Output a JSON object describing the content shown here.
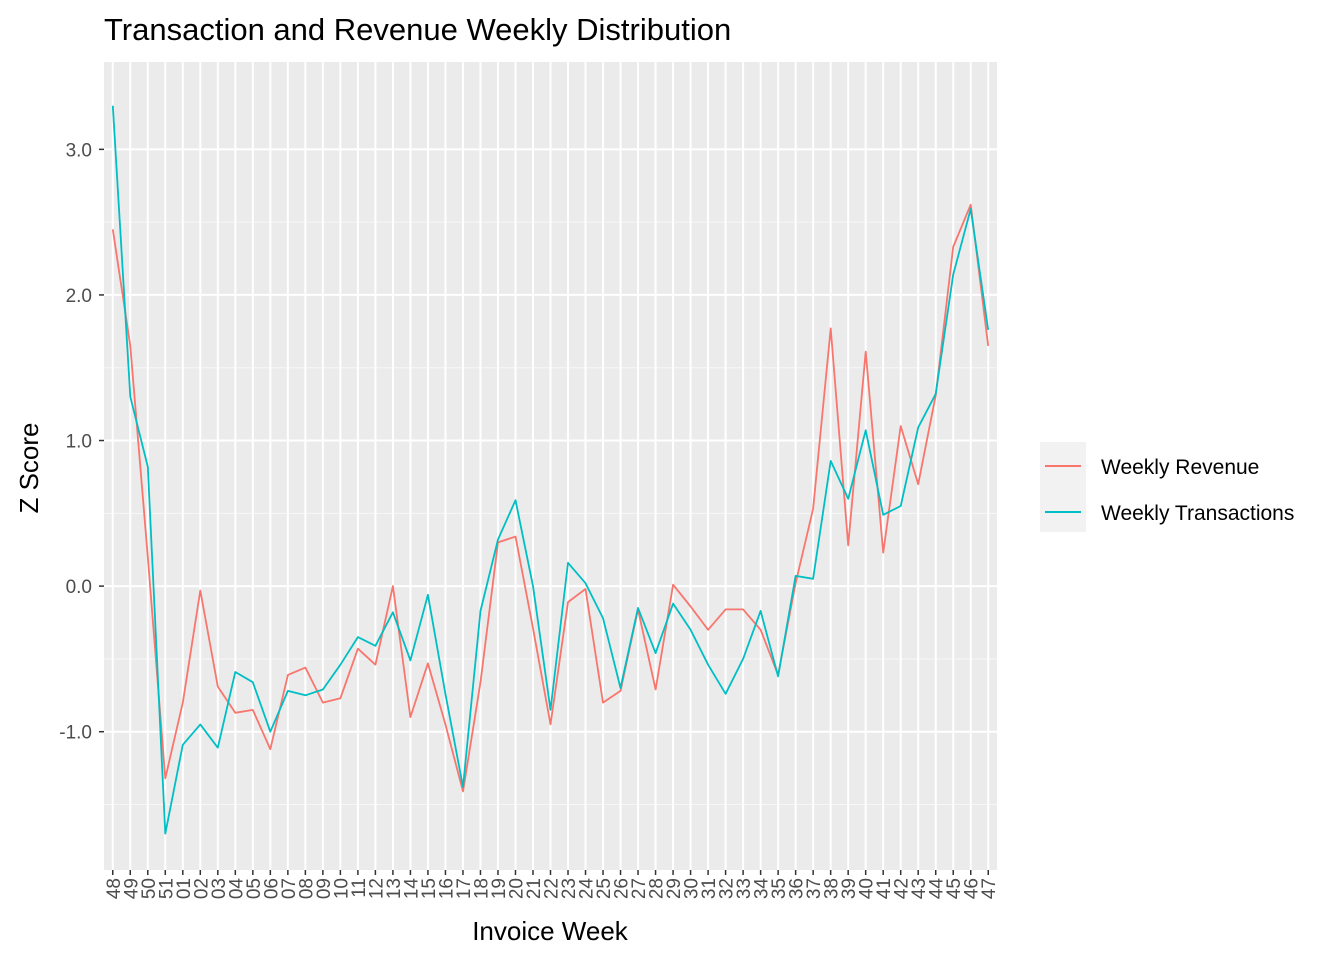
{
  "chart_data": {
    "type": "line",
    "title": "Transaction and Revenue Weekly Distribution",
    "xlabel": "Invoice Week",
    "ylabel": "Z Score",
    "categories": [
      "48",
      "49",
      "50",
      "51",
      "01",
      "02",
      "03",
      "04",
      "05",
      "06",
      "07",
      "08",
      "09",
      "10",
      "11",
      "12",
      "13",
      "14",
      "15",
      "16",
      "17",
      "18",
      "19",
      "20",
      "21",
      "22",
      "23",
      "24",
      "25",
      "26",
      "27",
      "28",
      "29",
      "30",
      "31",
      "32",
      "33",
      "34",
      "35",
      "36",
      "37",
      "38",
      "39",
      "40",
      "41",
      "42",
      "43",
      "44",
      "45",
      "46",
      "47"
    ],
    "y_ticks": [
      "-1.0",
      "0.0",
      "1.0",
      "2.0",
      "3.0"
    ],
    "ylim": [
      -1.95,
      3.6
    ],
    "grid": true,
    "legend_position": "right",
    "series": [
      {
        "name": "Weekly Revenue",
        "color": "#F8766D",
        "values": [
          2.45,
          1.65,
          0.2,
          -1.32,
          -0.8,
          -0.03,
          -0.69,
          -0.87,
          -0.85,
          -1.12,
          -0.61,
          -0.56,
          -0.8,
          -0.77,
          -0.43,
          -0.54,
          0.0,
          -0.9,
          -0.53,
          -0.95,
          -1.41,
          -0.66,
          0.3,
          0.34,
          -0.29,
          -0.95,
          -0.11,
          -0.02,
          -0.8,
          -0.72,
          -0.16,
          -0.71,
          0.01,
          -0.14,
          -0.3,
          -0.16,
          -0.16,
          -0.3,
          -0.61,
          0.02,
          0.53,
          1.77,
          0.28,
          1.61,
          0.23,
          1.1,
          0.7,
          1.31,
          2.33,
          2.62,
          1.65
        ]
      },
      {
        "name": "Weekly Transactions",
        "color": "#00BFC4",
        "values": [
          3.3,
          1.3,
          0.82,
          -1.7,
          -1.09,
          -0.95,
          -1.11,
          -0.59,
          -0.66,
          -1.0,
          -0.72,
          -0.75,
          -0.71,
          -0.54,
          -0.35,
          -0.41,
          -0.18,
          -0.51,
          -0.06,
          -0.74,
          -1.38,
          -0.17,
          0.32,
          0.59,
          0.0,
          -0.85,
          0.16,
          0.02,
          -0.22,
          -0.7,
          -0.15,
          -0.46,
          -0.12,
          -0.3,
          -0.54,
          -0.74,
          -0.5,
          -0.17,
          -0.62,
          0.07,
          0.05,
          0.86,
          0.6,
          1.07,
          0.49,
          0.55,
          1.09,
          1.32,
          2.14,
          2.59,
          1.76
        ]
      }
    ]
  }
}
